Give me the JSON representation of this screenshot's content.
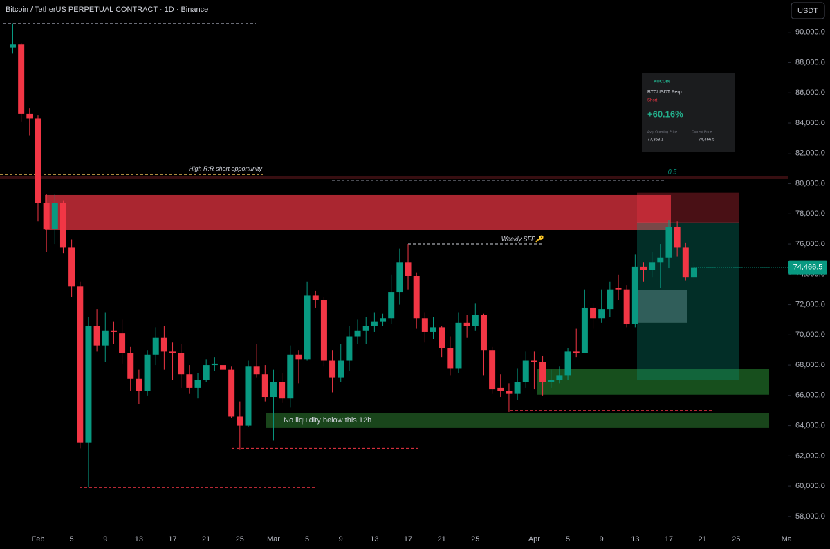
{
  "header": {
    "title": "Bitcoin / TetherUS PERPETUAL CONTRACT · 1D · Binance",
    "currency": "USDT"
  },
  "chart_data": {
    "type": "candlestick",
    "categories": [
      null,
      null,
      null,
      "Feb",
      null,
      null,
      null,
      "5",
      null,
      null,
      null,
      "9",
      null,
      null,
      null,
      "13",
      null,
      null,
      null,
      "17",
      null,
      null,
      null,
      "21",
      null,
      null,
      null,
      "25",
      null,
      null,
      null,
      "Mar",
      null,
      null,
      null,
      "5",
      null,
      null,
      null,
      "9",
      null,
      null,
      null,
      "13",
      null,
      null,
      null,
      "17",
      null,
      null,
      null,
      "21",
      null,
      null,
      null,
      "25",
      null,
      null,
      null,
      null,
      null,
      null,
      "Apr",
      null,
      null,
      null,
      "5",
      null,
      null,
      null,
      "9",
      null,
      null,
      null,
      "13",
      null,
      null,
      null,
      "17",
      null,
      null,
      null,
      "21",
      null,
      null,
      null,
      "25",
      null,
      null,
      null,
      null,
      null,
      "Ma"
    ],
    "open": [
      89000,
      89200,
      84600,
      84300,
      78700,
      77000,
      78700,
      75800,
      73200,
      62900,
      70600,
      69300,
      70300,
      70100,
      68800,
      67100,
      66300,
      68700,
      69800,
      68900,
      68800,
      67400,
      66500,
      67000,
      68000,
      68000,
      67700,
      64600,
      64000,
      67900,
      67400,
      65900,
      66900,
      65800,
      68700,
      68400,
      72600,
      72300,
      68300,
      67200,
      68300,
      69900,
      70300,
      70600,
      70900,
      71100,
      72800,
      74800,
      73900,
      71100,
      70200,
      70500,
      69100,
      67800,
      70800,
      70600,
      71300,
      69000,
      66500,
      66300,
      66100,
      66900,
      68300,
      68200,
      66900,
      67000,
      67300,
      68900,
      68800,
      71800,
      71100,
      71700,
      73100,
      73000,
      70700,
      74500,
      74300,
      74800,
      75100,
      77100,
      75800,
      73800,
      null,
      null,
      null,
      null,
      null,
      null,
      null,
      null,
      null,
      null,
      null
    ],
    "high": [
      90600,
      89300,
      85000,
      84500,
      79300,
      79300,
      78900,
      76300,
      73500,
      71200,
      71700,
      71500,
      70900,
      71000,
      69200,
      67700,
      69000,
      70500,
      70600,
      69500,
      69400,
      68000,
      67500,
      68400,
      68500,
      68300,
      67900,
      65600,
      68300,
      69400,
      68000,
      67700,
      67500,
      69300,
      69000,
      73500,
      72900,
      72500,
      69000,
      69400,
      70600,
      71000,
      71200,
      71500,
      71400,
      74000,
      75700,
      76000,
      74100,
      71500,
      71200,
      70600,
      69900,
      71500,
      71300,
      72100,
      71400,
      69200,
      67400,
      66800,
      67800,
      68900,
      68900,
      68600,
      67700,
      67900,
      69100,
      70400,
      73000,
      72100,
      73000,
      73500,
      74000,
      73300,
      75300,
      74800,
      75500,
      76000,
      77600,
      77500,
      76100,
      74800,
      null,
      null,
      null,
      null,
      null,
      null,
      null,
      null,
      null,
      null,
      null
    ],
    "low": [
      88600,
      84100,
      83200,
      77500,
      75500,
      76000,
      75400,
      72500,
      62500,
      59900,
      68900,
      68200,
      69400,
      68100,
      66300,
      65400,
      66000,
      68000,
      67700,
      67000,
      66500,
      66100,
      65800,
      66900,
      67600,
      67400,
      64500,
      62400,
      63900,
      67200,
      65600,
      63000,
      65500,
      65200,
      66800,
      68300,
      71800,
      67900,
      66200,
      66900,
      67600,
      69400,
      69400,
      70200,
      70600,
      70700,
      72000,
      73000,
      70400,
      69500,
      69700,
      68500,
      67300,
      67500,
      69800,
      70300,
      67300,
      66100,
      65900,
      64900,
      65700,
      66500,
      66400,
      66000,
      66500,
      66800,
      67000,
      68500,
      68800,
      70400,
      70800,
      71200,
      72300,
      70500,
      70500,
      73500,
      73800,
      73100,
      74400,
      75200,
      73600,
      73700,
      null,
      null,
      null,
      null,
      null,
      null,
      null,
      null,
      null,
      null,
      null
    ],
    "close": [
      89200,
      84600,
      84300,
      78700,
      77000,
      78700,
      75800,
      73200,
      62900,
      70600,
      69300,
      70300,
      70200,
      68800,
      67100,
      66300,
      68700,
      69800,
      68900,
      68800,
      67400,
      66500,
      67000,
      68000,
      68100,
      67700,
      64600,
      64000,
      67900,
      67400,
      65900,
      66900,
      65800,
      68700,
      68400,
      72600,
      72300,
      68300,
      67200,
      68300,
      69900,
      70300,
      70600,
      70900,
      71100,
      72800,
      74800,
      73900,
      71100,
      70200,
      70500,
      69100,
      67800,
      70800,
      70600,
      71300,
      69000,
      66400,
      66300,
      66100,
      66900,
      68300,
      68200,
      66900,
      67000,
      67300,
      68900,
      68800,
      71800,
      71100,
      71700,
      73000,
      73000,
      70700,
      74500,
      74300,
      74800,
      75100,
      77100,
      75800,
      73800,
      74466.5,
      null,
      null,
      null,
      null,
      null,
      null,
      null,
      null,
      null,
      null,
      null
    ],
    "up_color": "#089981",
    "down_color": "#f23645",
    "ylim": [
      57000,
      92000
    ],
    "yticks": [
      {
        "value": 58000,
        "label": "58,000.0"
      },
      {
        "value": 60000,
        "label": "60,000.0"
      },
      {
        "value": 62000,
        "label": "62,000.0"
      },
      {
        "value": 64000,
        "label": "64,000.0"
      },
      {
        "value": 66000,
        "label": "66,000.0"
      },
      {
        "value": 68000,
        "label": "68,000.0"
      },
      {
        "value": 70000,
        "label": "70,000.0"
      },
      {
        "value": 72000,
        "label": "72,000.0"
      },
      {
        "value": 74000,
        "label": "74,000.0"
      },
      {
        "value": 76000,
        "label": "76,000.0"
      },
      {
        "value": 78000,
        "label": "78,000.0"
      },
      {
        "value": 80000,
        "label": "80,000.0"
      },
      {
        "value": 82000,
        "label": "82,000.0"
      },
      {
        "value": 84000,
        "label": "84,000.0"
      },
      {
        "value": 86000,
        "label": "86,000.0"
      },
      {
        "value": 88000,
        "label": "88,000.0"
      },
      {
        "value": 90000,
        "label": "90,000.0"
      }
    ],
    "last_price_label": "74,466.5",
    "levels": [
      {
        "price": 90600,
        "color": "#787b86"
      },
      {
        "price": 80600,
        "color": "#c8a04a",
        "label": "High R:R short opportunity"
      },
      {
        "price": 80200,
        "color": "#787b86",
        "label": "0.5"
      },
      {
        "price": 76000,
        "color": "#d1d4dc",
        "label": "Weekly SFP🔑"
      },
      {
        "price": 65000,
        "color": "#f23645"
      },
      {
        "price": 62500,
        "color": "#f23645"
      },
      {
        "price": 59900,
        "color": "#f23645"
      }
    ],
    "zones": [
      {
        "low": 80300,
        "high": 80500,
        "color": "#7a1f26"
      },
      {
        "low": 76950,
        "high": 79250,
        "color": "#f23645"
      },
      {
        "low": 63850,
        "high": 64850,
        "color": "#2e7d32",
        "label": "No liquidity below this 12h"
      },
      {
        "low": 66050,
        "high": 67750,
        "color": "#2e9e3a"
      },
      {
        "low": 70800,
        "high": 72950,
        "color": "#9598a1"
      }
    ],
    "position": {
      "stop": 79400,
      "entry": 77400,
      "target": 67000
    }
  },
  "card": {
    "brand": "KUCOIN",
    "symbol": "BTCUSDT Perp",
    "side": "Short",
    "roi": "+60.16%",
    "entry_label": "Avg. Opening Price",
    "current_label": "Current Price",
    "entry": "77,368.1",
    "current": "74,466.5"
  }
}
